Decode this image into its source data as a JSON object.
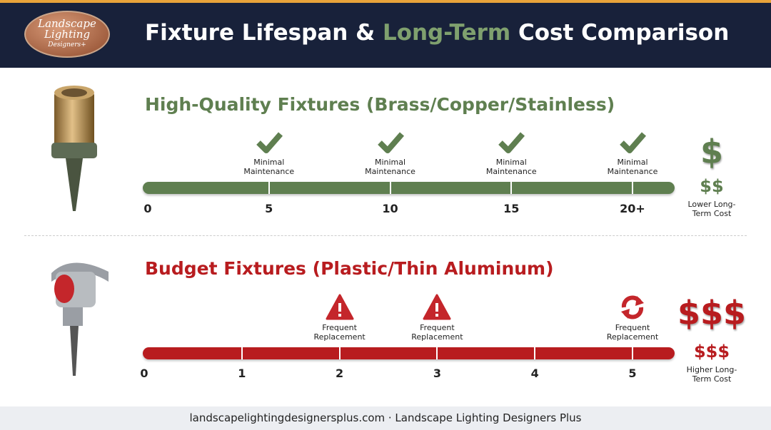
{
  "header": {
    "logo": {
      "line1": "Landscape",
      "line2": "Lighting",
      "line3": "Designers+"
    },
    "title": {
      "part1": "Fixture Lifespan & ",
      "highlight": "Long-Term",
      "part2": " Cost Comparison"
    }
  },
  "sections": [
    {
      "title": "High-Quality Fixtures (Brass/Copper/Stainless)",
      "color": "#5f7f50",
      "ticks": [
        {
          "label": "0"
        },
        {
          "label": "5",
          "note": "Minimal Maintenance",
          "icon": "check"
        },
        {
          "label": "10",
          "note": "Minimal Maintenance",
          "icon": "check"
        },
        {
          "label": "15",
          "note": "Minimal Maintenance",
          "icon": "check"
        },
        {
          "label": "20+",
          "note": "Minimal Maintenance",
          "icon": "check"
        }
      ],
      "cost": {
        "big": "$",
        "small": "$$",
        "label": "Lower Long-Term Cost"
      }
    },
    {
      "title": "Budget Fixtures (Plastic/Thin Aluminum)",
      "color": "#b81c1f",
      "ticks": [
        {
          "label": "0"
        },
        {
          "label": "1"
        },
        {
          "label": "2",
          "note": "Frequent Replacement",
          "icon": "warning"
        },
        {
          "label": "3",
          "note": "Frequent Replacement",
          "icon": "warning"
        },
        {
          "label": "4"
        },
        {
          "label": "5",
          "note": "Frequent Replacement",
          "icon": "refresh"
        }
      ],
      "cost": {
        "big": "$$$",
        "small": "$$$",
        "label": "Higher Long-Term Cost"
      }
    }
  ],
  "footer": "landscapelightingdesignersplus.com · Landscape Lighting Designers Plus"
}
